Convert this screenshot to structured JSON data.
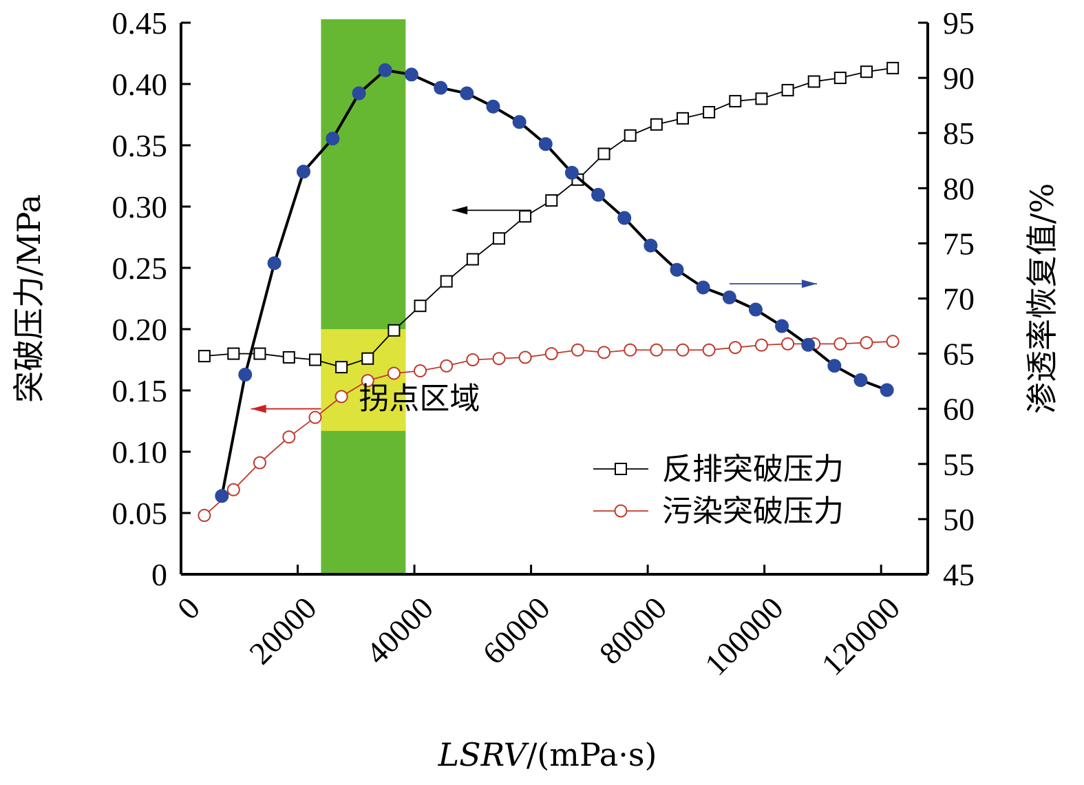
{
  "chart_data": {
    "type": "line",
    "xlabel_italic": "LSRV",
    "xlabel_unit": "/(mPa·s)",
    "ylabel_left": "突破压力/MPa",
    "ylabel_right": "渗透率恢复值/%",
    "xlim": [
      0,
      128000
    ],
    "ylim_left": [
      0,
      0.45
    ],
    "ylim_right": [
      45,
      95
    ],
    "x_ticks": [
      "0",
      "20000",
      "40000",
      "60000",
      "80000",
      "100000",
      "120000"
    ],
    "x_tick_values": [
      0,
      20000,
      40000,
      60000,
      80000,
      100000,
      120000
    ],
    "y_left_ticks": [
      "0",
      "0.05",
      "0.10",
      "0.15",
      "0.20",
      "0.25",
      "0.30",
      "0.35",
      "0.40",
      "0.45"
    ],
    "y_left_tick_values": [
      0,
      0.05,
      0.1,
      0.15,
      0.2,
      0.25,
      0.3,
      0.35,
      0.4,
      0.45
    ],
    "y_right_ticks": [
      "45",
      "50",
      "55",
      "60",
      "65",
      "70",
      "75",
      "80",
      "85",
      "90",
      "95"
    ],
    "y_right_tick_values": [
      45,
      50,
      55,
      60,
      65,
      70,
      75,
      80,
      85,
      90,
      95
    ],
    "shaded_region": {
      "x": [
        24000,
        38500
      ],
      "color": "#66b832"
    },
    "highlight_region": {
      "x": [
        24000,
        38500
      ],
      "y_left": [
        0.117,
        0.2
      ],
      "color": "#dde33a",
      "label": "拐点区域"
    },
    "series": [
      {
        "name": "反排突破压力",
        "axis": "left",
        "marker": "square",
        "color": "#000000",
        "x": [
          4000,
          9000,
          13500,
          18500,
          23000,
          27500,
          32000,
          36500,
          41000,
          45500,
          50000,
          54500,
          59000,
          63500,
          68000,
          72500,
          77000,
          81500,
          86000,
          90500,
          95000,
          99500,
          104000,
          108500,
          113000,
          117500,
          122000
        ],
        "values": [
          0.178,
          0.18,
          0.18,
          0.177,
          0.175,
          0.169,
          0.176,
          0.199,
          0.219,
          0.239,
          0.257,
          0.274,
          0.292,
          0.305,
          0.322,
          0.343,
          0.358,
          0.367,
          0.372,
          0.377,
          0.386,
          0.388,
          0.395,
          0.402,
          0.405,
          0.41,
          0.413
        ]
      },
      {
        "name": "污染突破压力",
        "axis": "left",
        "marker": "circle",
        "color": "#c0392b",
        "x": [
          4000,
          9000,
          13500,
          18500,
          23000,
          27500,
          32000,
          36500,
          41000,
          45500,
          50000,
          54500,
          59000,
          63500,
          68000,
          72500,
          77000,
          81500,
          86000,
          90500,
          95000,
          99500,
          104000,
          108500,
          113000,
          117500,
          122000
        ],
        "values": [
          0.048,
          0.069,
          0.091,
          0.112,
          0.128,
          0.145,
          0.158,
          0.164,
          0.166,
          0.17,
          0.175,
          0.176,
          0.177,
          0.18,
          0.183,
          0.181,
          0.183,
          0.183,
          0.183,
          0.183,
          0.185,
          0.187,
          0.188,
          0.188,
          0.188,
          0.189,
          0.19
        ]
      },
      {
        "name": "渗透率恢复值",
        "axis": "right",
        "marker": "filled-circle",
        "color": "#2a4aa0",
        "line_color": "#000000",
        "x": [
          7000,
          11000,
          16000,
          21000,
          26000,
          30500,
          35000,
          39500,
          44500,
          49000,
          53500,
          58000,
          62500,
          67000,
          71500,
          76000,
          80500,
          85000,
          89500,
          94000,
          98500,
          103000,
          107500,
          112000,
          116500,
          121000
        ],
        "values": [
          52.1,
          63.1,
          73.2,
          81.5,
          84.5,
          88.6,
          90.7,
          90.3,
          89.1,
          88.6,
          87.4,
          86.0,
          84.0,
          81.4,
          79.4,
          77.3,
          74.8,
          72.6,
          71.0,
          70.1,
          69.0,
          67.5,
          65.8,
          63.9,
          62.6,
          61.7
        ]
      }
    ],
    "arrows": [
      {
        "direction": "left",
        "color": "#000000",
        "x": [
          46500,
          60000
        ],
        "y_left": 0.297
      },
      {
        "direction": "left",
        "color": "#cc2222",
        "x": [
          12000,
          24000
        ],
        "y_left": 0.135
      },
      {
        "direction": "right",
        "color": "#2a4aa0",
        "x": [
          94000,
          109000
        ],
        "y_left": 0.237
      }
    ],
    "legend": {
      "position": "lower-right",
      "entries": [
        "反排突破压力",
        "污染突破压力"
      ]
    }
  }
}
